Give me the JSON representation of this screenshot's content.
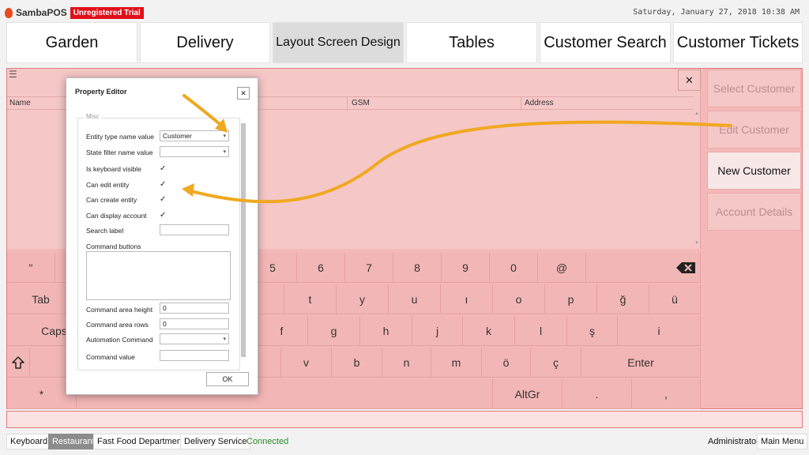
{
  "header": {
    "brand": "SambaPOS",
    "trial_badge": "Unregistered Trial",
    "datetime": "Saturday, January 27, 2018 10:38 AM"
  },
  "top_tabs": [
    "Garden",
    "Delivery",
    "Layout Screen Design",
    "Tables",
    "Customer Search",
    "Customer Tickets"
  ],
  "active_tab": "Layout Screen Design",
  "entity_list": {
    "columns": [
      "Name",
      "GSM",
      "Address"
    ]
  },
  "side_buttons": [
    {
      "label": "Select Customer",
      "enabled": false
    },
    {
      "label": "Edit Customer",
      "enabled": false
    },
    {
      "label": "New Customer",
      "enabled": true
    },
    {
      "label": "Account Details",
      "enabled": false
    }
  ],
  "keyboard": {
    "row1": [
      "\"",
      "5",
      "6",
      "7",
      "8",
      "9",
      "0",
      "@"
    ],
    "row2": [
      "Tab",
      "t",
      "y",
      "u",
      "ı",
      "o",
      "p",
      "ğ",
      "ü"
    ],
    "row3": [
      "Caps",
      "f",
      "g",
      "h",
      "j",
      "k",
      "l",
      "ş",
      "i"
    ],
    "row4": [
      "v",
      "b",
      "n",
      "m",
      "ö",
      "ç",
      "Enter"
    ],
    "row5": [
      "*",
      "AltGr",
      ".",
      ","
    ],
    "shift_icon": "shift-arrow-icon",
    "backspace_icon": "backspace-icon"
  },
  "property_editor": {
    "title": "Property Editor",
    "group": "Misc",
    "entity_type_label": "Entity type name value",
    "entity_type_value": "Customer",
    "state_filter_label": "State filter name value",
    "keyboard_visible_label": "Is keyboard visible",
    "can_edit_label": "Can edit entity",
    "can_create_label": "Can create entity",
    "can_display_label": "Can display account",
    "search_label_label": "Search label",
    "command_buttons_label": "Command buttons",
    "command_area_height_label": "Command area height",
    "command_area_height_value": "0",
    "command_area_rows_label": "Command area rows",
    "command_area_rows_value": "0",
    "automation_command_label": "Automation Command",
    "command_value_label": "Command value",
    "ok_label": "OK",
    "close_label": "✕"
  },
  "status_bar": {
    "keyboard": "Keyboard",
    "restaurant": "Restaurant",
    "fast_food": "Fast Food Department",
    "delivery_service": "Delivery Service",
    "connected": "Connected",
    "user": "Administrator",
    "main_menu": "Main Menu"
  },
  "colors": {
    "panel_pink": "#f4b8b8",
    "trial_red": "#e0101a",
    "annotation_arrow": "#f0a820",
    "connected_green": "#2a8a2a"
  }
}
